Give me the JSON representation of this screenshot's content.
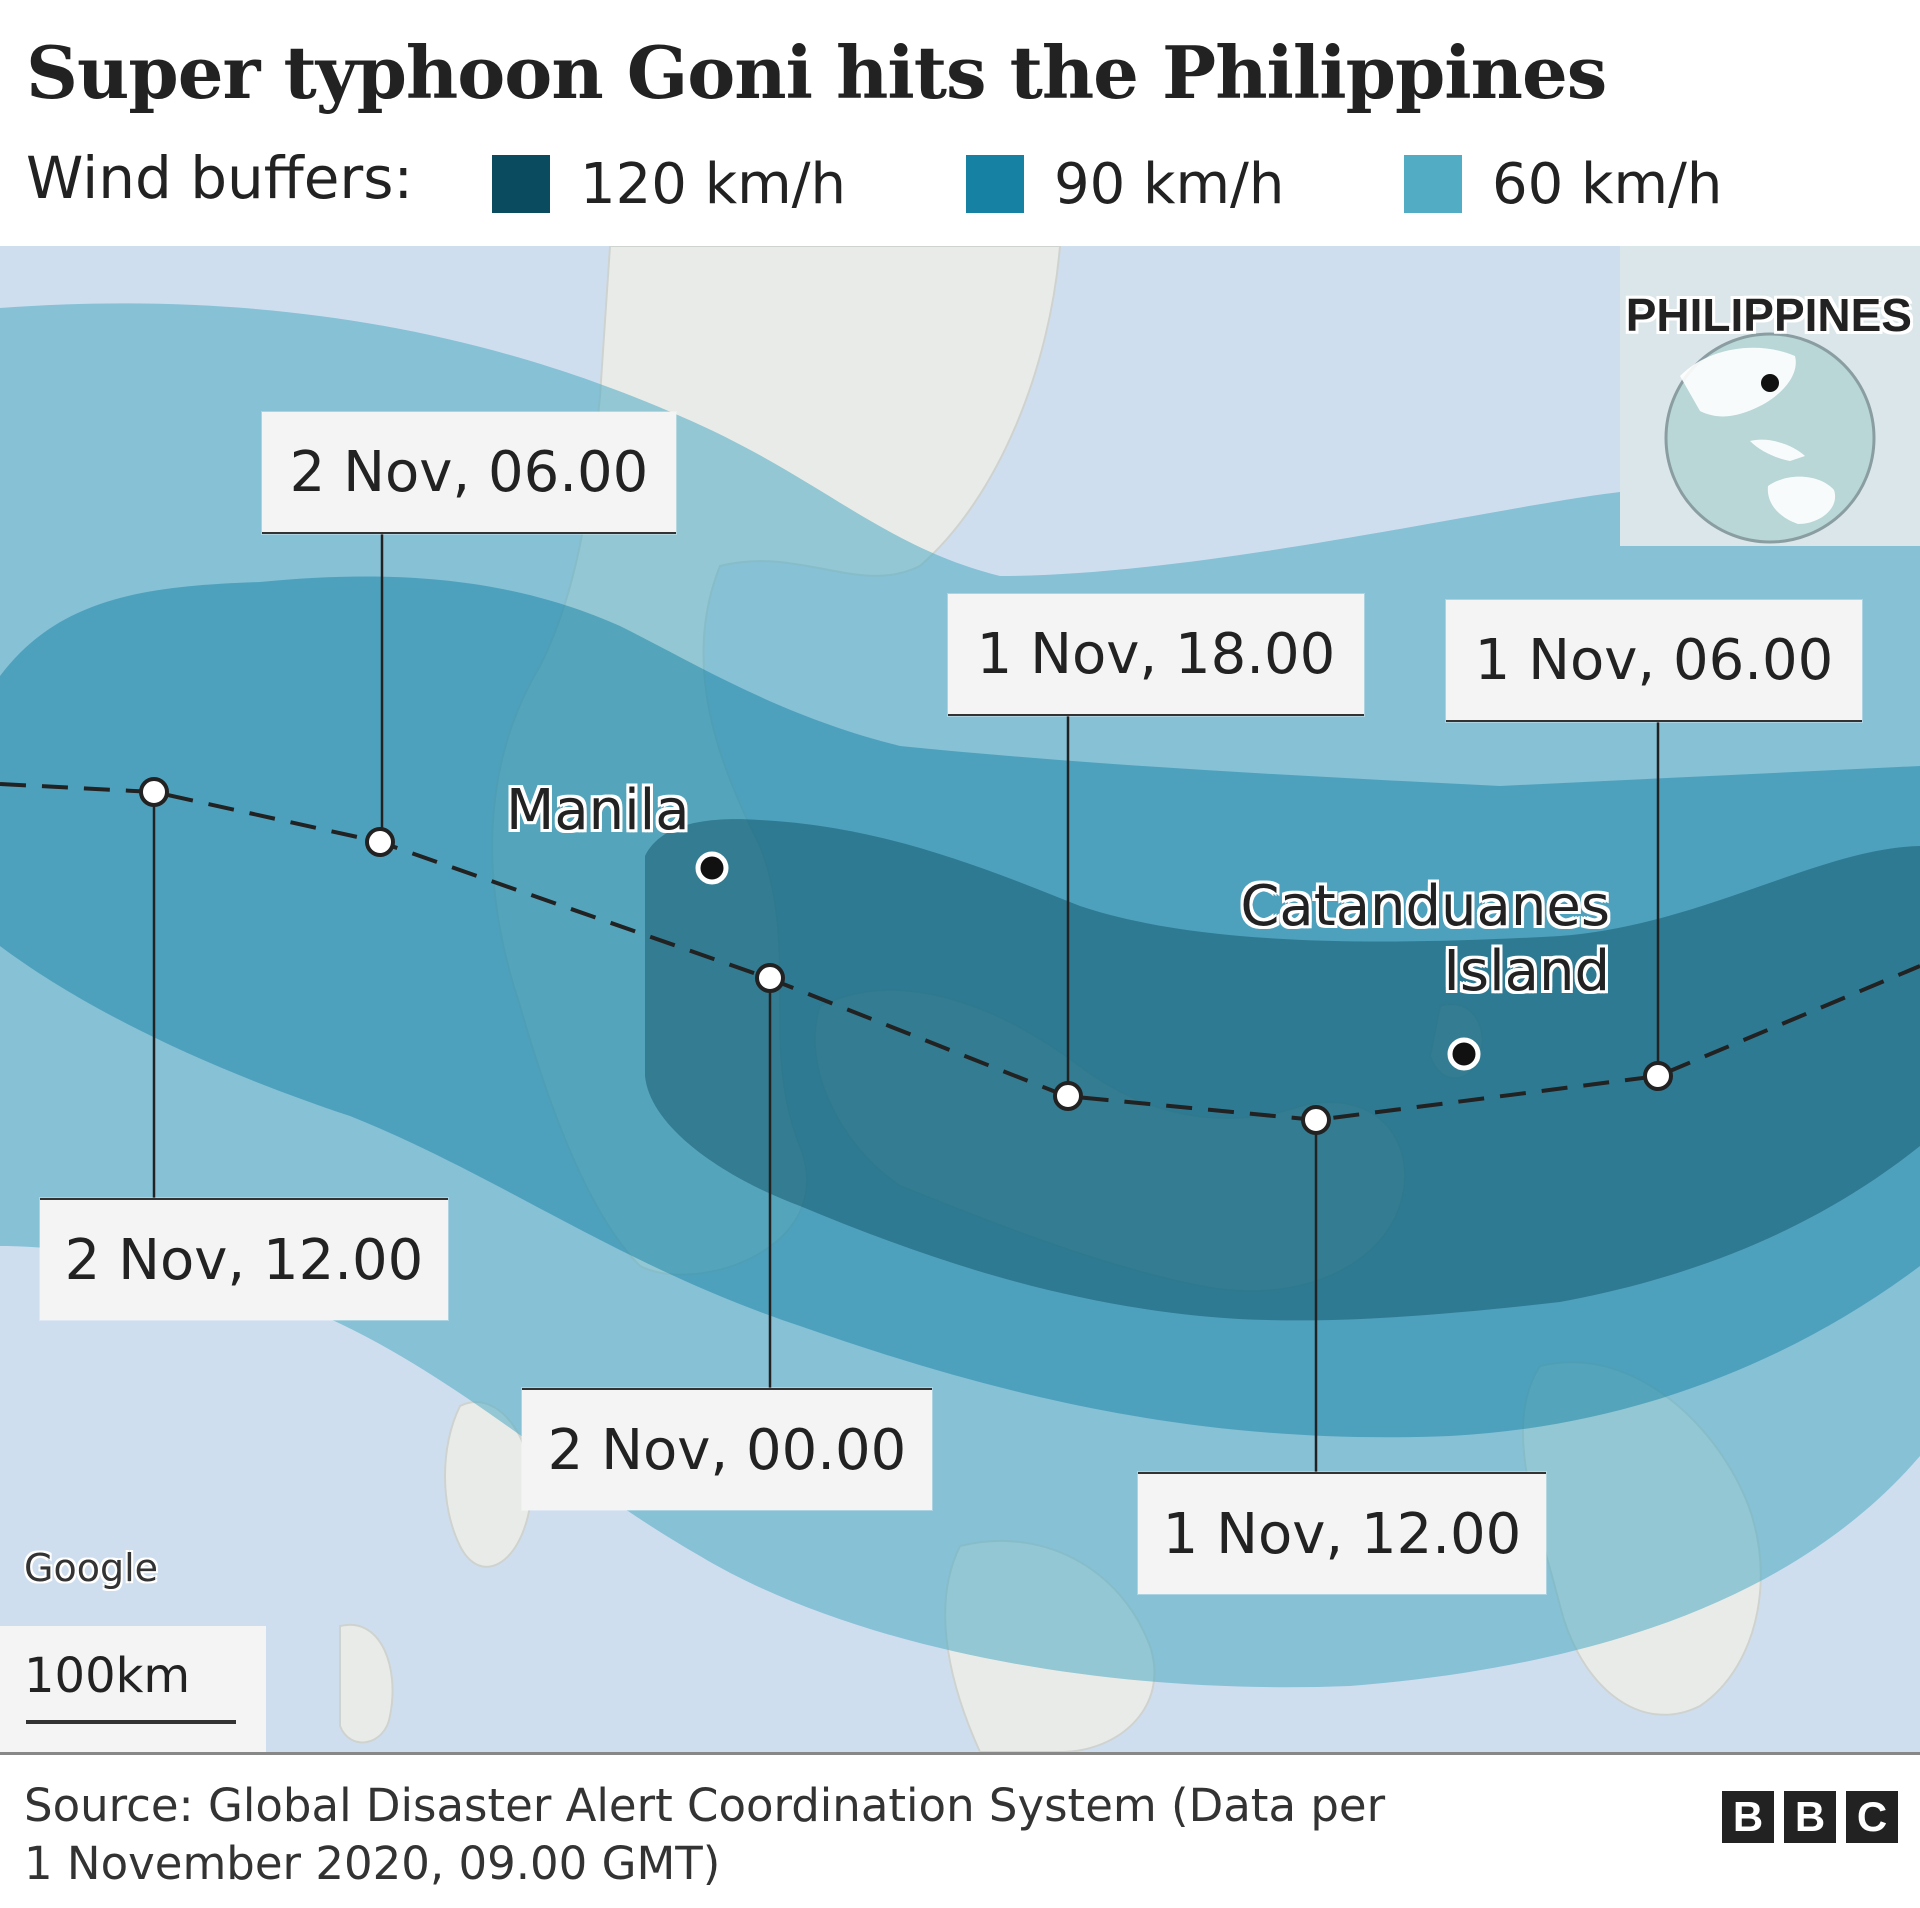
{
  "title": "Super typhoon Goni hits the Philippines",
  "legend": {
    "label": "Wind buffers:",
    "items": [
      {
        "label": "120 km/h",
        "color": "#0b4b5f"
      },
      {
        "label": "90 km/h",
        "color": "#1681a3"
      },
      {
        "label": "60 km/h",
        "color": "#52acc4"
      }
    ]
  },
  "map": {
    "track_labels": [
      {
        "text": "2 Nov, 06.00"
      },
      {
        "text": "1 Nov, 18.00"
      },
      {
        "text": "1 Nov, 06.00"
      },
      {
        "text": "2 Nov, 12.00"
      },
      {
        "text": "2 Nov, 00.00"
      },
      {
        "text": "1 Nov, 12.00"
      }
    ],
    "places": {
      "manila": "Manila",
      "catanduanes_line1": "Catanduanes",
      "catanduanes_line2": "Island"
    },
    "inset_label": "PHILIPPINES",
    "attribution": "Google",
    "scale_label": "100km"
  },
  "footer": {
    "source_line1": "Source: Global Disaster Alert Coordination System (Data per",
    "source_line2": "1 November 2020, 09.00 GMT)",
    "logo_letters": [
      "B",
      "B",
      "C"
    ]
  },
  "colors": {
    "sea": "#cfdeef",
    "land": "#e9ebe8",
    "buffer_60": "#52acc4",
    "buffer_90": "#1681a3",
    "buffer_120": "#0b4b5f"
  }
}
